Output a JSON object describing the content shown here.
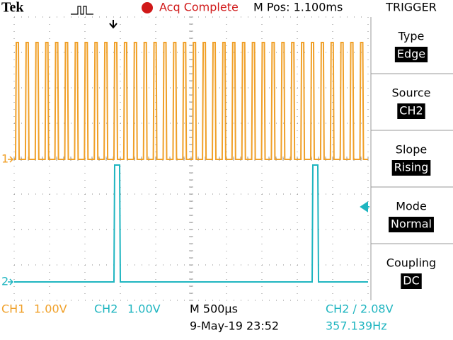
{
  "header": {
    "brand": "Tek",
    "status": "Acq Complete",
    "position": "M Pos: 1.100ms"
  },
  "markers": {
    "ch1": "1",
    "ch2": "2"
  },
  "menu": {
    "title": "TRIGGER",
    "items": [
      {
        "label": "Type",
        "value": "Edge"
      },
      {
        "label": "Source",
        "value": "CH2"
      },
      {
        "label": "Slope",
        "value": "Rising"
      },
      {
        "label": "Mode",
        "value": "Normal"
      },
      {
        "label": "Coupling",
        "value": "DC"
      }
    ]
  },
  "footer": {
    "ch1_name": "CH1",
    "ch1_scale": "1.00V",
    "ch2_name": "CH2",
    "ch2_scale": "1.00V",
    "timebase": "M 500µs",
    "datetime": "9-May-19 23:52",
    "trigger": "CH2 ∕ 2.08V",
    "frequency": "357.139Hz"
  }
}
